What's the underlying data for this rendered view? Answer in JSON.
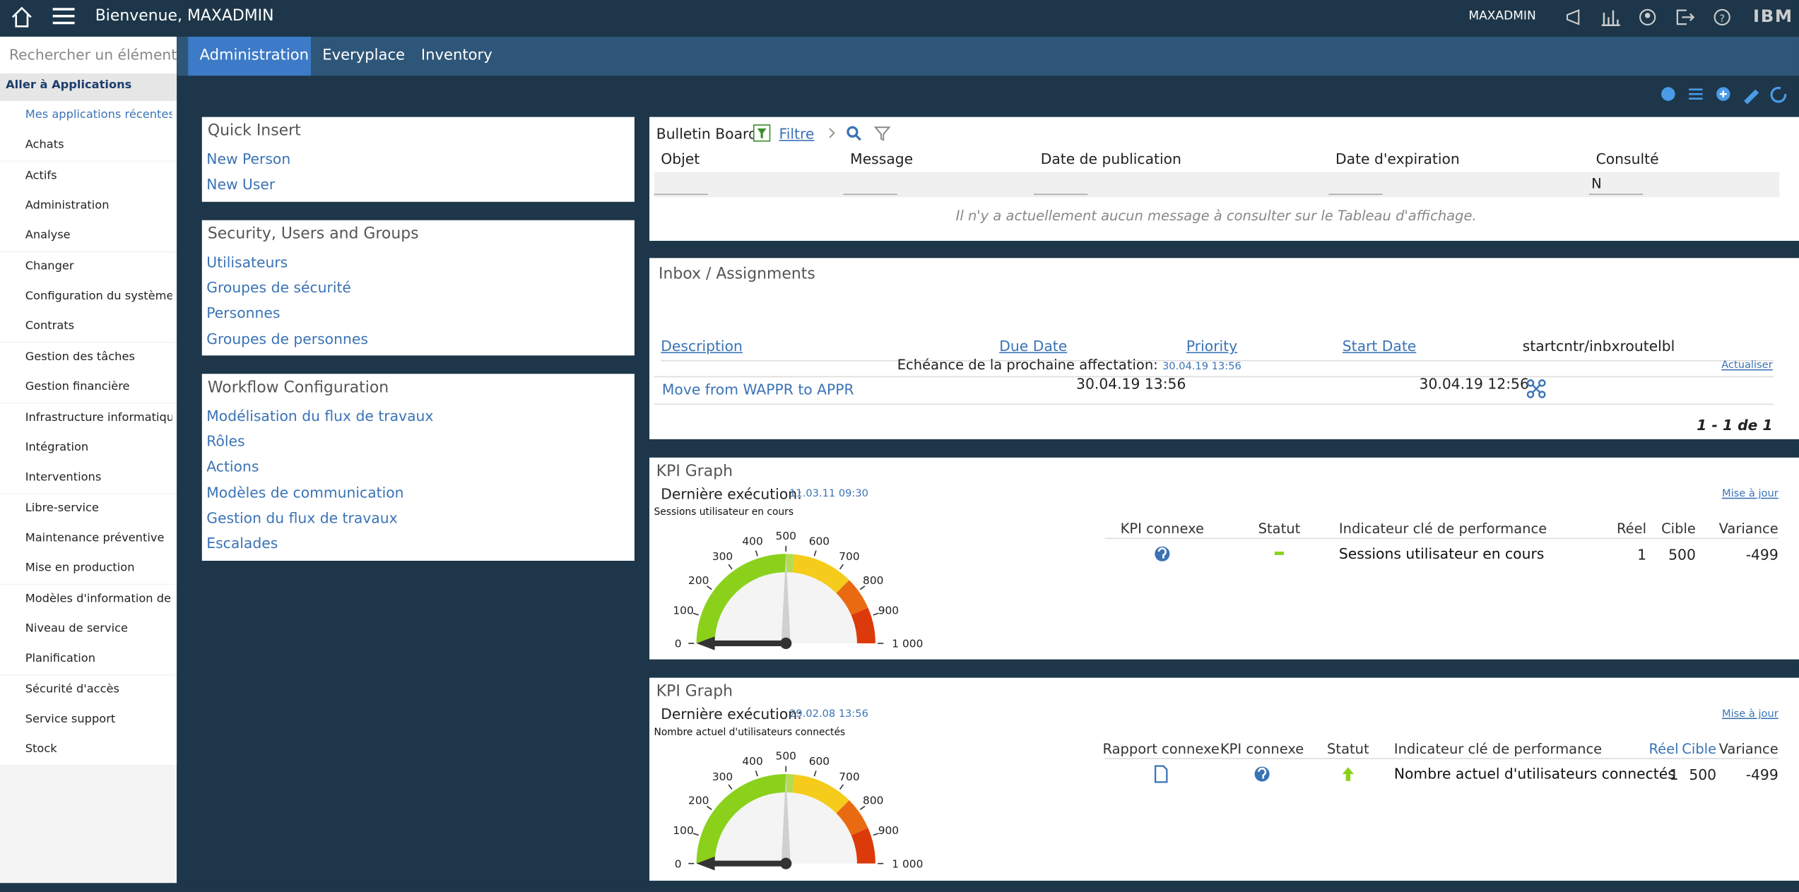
{
  "header": {
    "welcome": "Bienvenue, MAXADMIN",
    "user": "MAXADMIN",
    "brand": "IBM"
  },
  "sidebar": {
    "search_placeholder": "Rechercher un élément d",
    "goto": "Aller à Applications",
    "items": [
      "Mes applications récentes",
      "Achats",
      "Actifs",
      "Administration",
      "Analyse",
      "Changer",
      "Configuration du système",
      "Contrats",
      "Gestion des tâches",
      "Gestion financière",
      "Infrastructure informatique",
      "Intégration",
      "Interventions",
      "Libre-service",
      "Maintenance préventive",
      "Mise en production",
      "Modèles d'information de c...",
      "Niveau de service",
      "Planification",
      "Sécurité d'accès",
      "Service support",
      "Stock"
    ]
  },
  "tabs": [
    "Administration",
    "Everyplace",
    "Inventory"
  ],
  "panels": [
    {
      "title": "Quick Insert",
      "links": [
        "New Person",
        "New User"
      ]
    },
    {
      "title": "Security, Users and Groups",
      "links": [
        "Utilisateurs",
        "Groupes de sécurité",
        "Personnes",
        "Groupes de personnes"
      ]
    },
    {
      "title": "Workflow Configuration",
      "links": [
        "Modélisation du flux de travaux",
        "Rôles",
        "Actions",
        "Modèles de communication",
        "Gestion du flux de travaux",
        "Escalades"
      ]
    }
  ],
  "bulletin": {
    "title": "Bulletin Board",
    "filter": "Filtre",
    "columns": [
      "Objet",
      "Message",
      "Date de publication",
      "Date d'expiration",
      "Consulté"
    ],
    "filter_value": "N",
    "empty": "Il n'y a actuellement aucun message à consulter sur le Tableau d'affichage."
  },
  "inbox": {
    "title": "Inbox / Assignments",
    "columns": [
      "Description",
      "Due Date",
      "Priority",
      "Start Date",
      "startcntr/inbxroutelbl"
    ],
    "next_label": "Echéance de la prochaine affectation:",
    "next_date": "30.04.19 13:56",
    "refresh": "Actualiser",
    "row": {
      "description": "Move from WAPPR to APPR",
      "due": "30.04.19 13:56",
      "start": "30.04.19 12:56"
    },
    "count": "1 - 1 de 1"
  },
  "kpi": [
    {
      "title": "KPI Graph",
      "last_run_label": "Dernière exécution:",
      "last_run": "11.03.11 09:30",
      "update": "Mise à jour",
      "gauge_title": "Sessions utilisateur en cours",
      "gauge_ticks": [
        "0",
        "100",
        "200",
        "300",
        "400",
        "500",
        "600",
        "700",
        "800",
        "900",
        "1 000"
      ],
      "columns": [
        "KPI connexe",
        "Statut",
        "Indicateur clé de performance",
        "Réel",
        "Cible",
        "Variance"
      ],
      "row": {
        "indicator": "Sessions utilisateur en cours",
        "actual": 1,
        "target": 500,
        "variance": -499
      }
    },
    {
      "title": "KPI Graph",
      "last_run_label": "Dernière exécution:",
      "last_run": "29.02.08 13:56",
      "update": "Mise à jour",
      "gauge_title": "Nombre actuel d'utilisateurs connectés",
      "gauge_ticks": [
        "0",
        "100",
        "200",
        "300",
        "400",
        "500",
        "600",
        "700",
        "800",
        "900",
        "1 000"
      ],
      "columns": [
        "Rapport connexe",
        "KPI connexe",
        "Statut",
        "Indicateur clé de performance",
        "Réel",
        "Cible",
        "Variance"
      ],
      "row": {
        "indicator": "Nombre actuel d'utilisateurs connectés",
        "actual": 1,
        "target": 500,
        "variance": -499
      }
    }
  ]
}
